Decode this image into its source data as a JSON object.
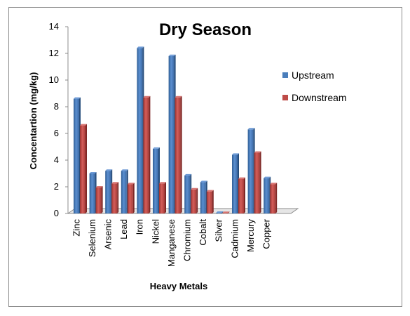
{
  "chart_data": {
    "type": "bar",
    "title": "Dry Season",
    "xlabel": "Heavy Metals",
    "ylabel": "Concentartion (mg/kg)",
    "ylim": [
      0,
      14
    ],
    "yticks": [
      0,
      2,
      4,
      6,
      8,
      10,
      12,
      14
    ],
    "categories": [
      "Zinc",
      "Selenium",
      "Arsenic",
      "Lead",
      "Iron",
      "Nickel",
      "Manganese",
      "Chromium",
      "Cobalt",
      "Silver",
      "Cadmium",
      "Mercury",
      "Copper"
    ],
    "series": [
      {
        "name": "Upstream",
        "color": "#4a7ebb",
        "values": [
          8.6,
          3.0,
          3.2,
          3.2,
          12.4,
          4.85,
          11.8,
          2.85,
          2.35,
          0.05,
          4.4,
          6.3,
          2.65
        ]
      },
      {
        "name": "Downstream",
        "color": "#be4b48",
        "values": [
          6.6,
          1.95,
          2.25,
          2.2,
          8.7,
          2.25,
          8.7,
          1.8,
          1.65,
          0.0,
          2.6,
          4.55,
          2.2
        ]
      }
    ],
    "legend_position": "right",
    "grid": false
  }
}
